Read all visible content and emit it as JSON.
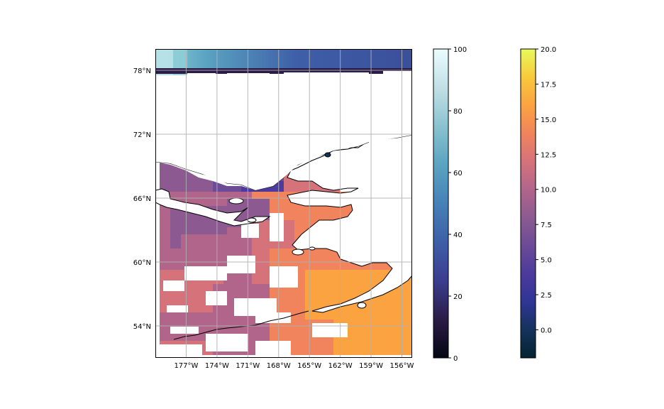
{
  "map": {
    "type": "geographic-map",
    "projection": "PlateCarree",
    "gridlines": true,
    "lat_labels": [
      "78°N",
      "72°N",
      "66°N",
      "60°N",
      "54°N"
    ],
    "lon_labels": [
      "177°W",
      "174°W",
      "171°W",
      "168°W",
      "165°W",
      "162°W",
      "159°W",
      "156°W"
    ],
    "lat_values": [
      78,
      72,
      66,
      60,
      54
    ],
    "lon_values": [
      -177,
      -174,
      -171,
      -168,
      -165,
      -162,
      -159,
      -156
    ],
    "lat_range": [
      51,
      80
    ],
    "lon_range": [
      -180,
      -155
    ],
    "land_color": "#ffffff",
    "coastline_color": "#000000",
    "grid_color": "#b0b0b0",
    "layers": [
      {
        "name": "ice",
        "colormap": "ice",
        "region": "north"
      },
      {
        "name": "sst",
        "colormap": "thermal",
        "region": "ocean"
      }
    ]
  },
  "colorbar_ice": {
    "range": [
      0,
      100
    ],
    "tick_labels": [
      "0",
      "20",
      "40",
      "60",
      "80",
      "100"
    ],
    "tick_values": [
      0,
      20,
      40,
      60,
      80,
      100
    ],
    "colors": [
      "#040613",
      "#2a1c46",
      "#3b3d8f",
      "#3e5fa8",
      "#4681b6",
      "#5aa3c1",
      "#8ac3cf",
      "#c2e0e6",
      "#eafdfd"
    ]
  },
  "colorbar_thermal": {
    "range": [
      -2,
      20
    ],
    "tick_labels": [
      "0.0",
      "2.5",
      "5.0",
      "7.5",
      "10.0",
      "12.5",
      "15.0",
      "17.5",
      "20.0"
    ],
    "tick_values": [
      0,
      2.5,
      5,
      7.5,
      10,
      12.5,
      15,
      17.5,
      20
    ],
    "colors": [
      "#042333",
      "#15325c",
      "#2f3596",
      "#4c3a9c",
      "#6c4b97",
      "#8c5a91",
      "#b2658b",
      "#d6727a",
      "#f1845c",
      "#fba341",
      "#f9c93c",
      "#e8fa5b"
    ]
  }
}
